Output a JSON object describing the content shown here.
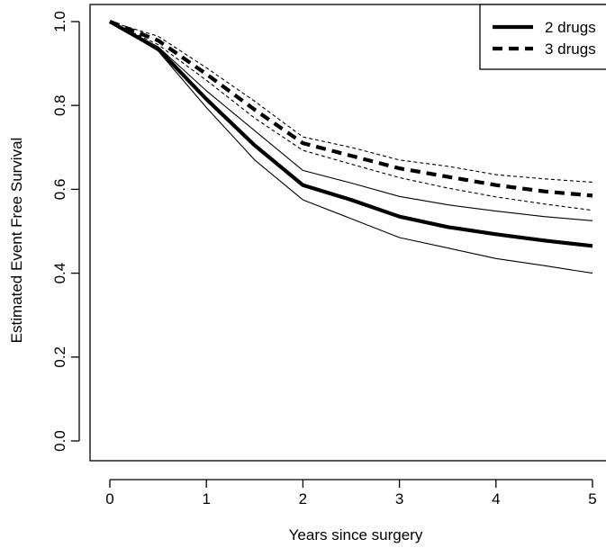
{
  "chart_data": {
    "type": "line",
    "title": "",
    "xlabel": "Years since surgery",
    "ylabel": "Estimated Event Free Survival",
    "xlim": [
      0,
      5
    ],
    "ylim": [
      0,
      1
    ],
    "xticks": [
      "0",
      "1",
      "2",
      "3",
      "4",
      "5"
    ],
    "yticks": [
      "0.0",
      "0.2",
      "0.4",
      "0.6",
      "0.8",
      "1.0"
    ],
    "x": [
      0,
      0.5,
      1,
      1.5,
      2,
      2.5,
      3,
      3.5,
      4,
      4.5,
      5
    ],
    "series": [
      {
        "name": "2 drugs",
        "style": "solid",
        "role": "estimate",
        "values": [
          1.0,
          0.935,
          0.815,
          0.705,
          0.61,
          0.575,
          0.535,
          0.51,
          0.493,
          0.478,
          0.465
        ]
      },
      {
        "style": "solid",
        "role": "ci-upper",
        "values": [
          1.0,
          0.94,
          0.835,
          0.74,
          0.645,
          0.615,
          0.583,
          0.563,
          0.548,
          0.535,
          0.525
        ]
      },
      {
        "style": "solid",
        "role": "ci-lower",
        "values": [
          1.0,
          0.93,
          0.795,
          0.67,
          0.575,
          0.53,
          0.485,
          0.46,
          0.435,
          0.418,
          0.4
        ]
      },
      {
        "name": "3 drugs",
        "style": "dashed",
        "role": "estimate",
        "values": [
          1.0,
          0.955,
          0.875,
          0.79,
          0.71,
          0.68,
          0.65,
          0.63,
          0.61,
          0.595,
          0.585
        ]
      },
      {
        "style": "dashed",
        "role": "ci-upper",
        "values": [
          1.0,
          0.965,
          0.89,
          0.81,
          0.725,
          0.7,
          0.67,
          0.655,
          0.635,
          0.625,
          0.617
        ]
      },
      {
        "style": "dashed",
        "role": "ci-lower",
        "values": [
          1.0,
          0.945,
          0.86,
          0.77,
          0.693,
          0.66,
          0.628,
          0.603,
          0.582,
          0.565,
          0.55
        ]
      }
    ],
    "legend": {
      "placement": "top-right",
      "entries": [
        {
          "label": "2 drugs",
          "style": "solid"
        },
        {
          "label": "3 drugs",
          "style": "dashed"
        }
      ]
    },
    "grid": false
  }
}
